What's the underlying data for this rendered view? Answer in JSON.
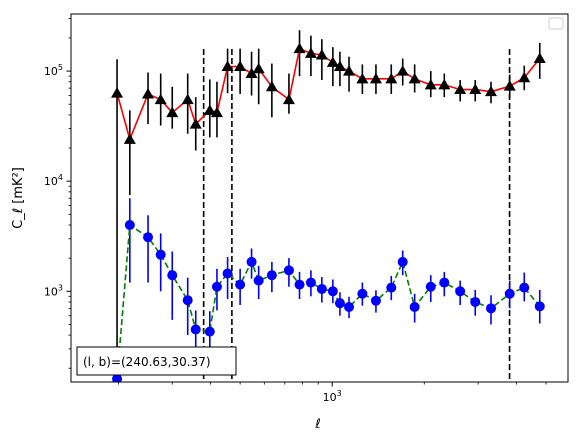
{
  "chart_data": {
    "type": "scatter",
    "title": "",
    "xlabel": "ℓ",
    "ylabel": "C_ℓ [mK²]",
    "xscale": "log",
    "yscale": "log",
    "xlim": [
      140,
      5900
    ],
    "ylim": [
      150,
      330000
    ],
    "x_tick_labels": [
      {
        "value": 1000,
        "base": "10",
        "exp": "3"
      }
    ],
    "y_tick_labels": [
      {
        "value": 1000,
        "base": "10",
        "exp": "3"
      },
      {
        "value": 10000,
        "base": "10",
        "exp": "4"
      },
      {
        "value": 100000,
        "base": "10",
        "exp": "5"
      }
    ],
    "annotation": "(l, b)=(240.63,30.37)",
    "vertical_lines_x": [
      380,
      470,
      3800
    ],
    "legend_location": "upper right (empty)",
    "series": [
      {
        "line_color": "#ff0000",
        "line_style": "solid",
        "marker": "triangle",
        "marker_color": "#000000",
        "errorbar_color": "#000000",
        "x": [
          198,
          218,
          250,
          275,
          300,
          337,
          358,
          398,
          420,
          455,
          500,
          545,
          575,
          635,
          722,
          782,
          852,
          925,
          1005,
          1060,
          1135,
          1255,
          1390,
          1560,
          1700,
          1860,
          2100,
          2325,
          2620,
          2935,
          3305,
          3805,
          4245,
          4770
        ],
        "y": [
          63000,
          24000,
          62000,
          55000,
          42000,
          55000,
          33000,
          44000,
          42000,
          110000,
          110000,
          95000,
          105000,
          72000,
          55000,
          160000,
          145000,
          140000,
          120000,
          110000,
          100000,
          85000,
          85000,
          85000,
          100000,
          85000,
          75000,
          75000,
          68000,
          68000,
          65000,
          73000,
          87000,
          130000
        ],
        "yerr_low": [
          62900,
          16500,
          29000,
          23000,
          12000,
          28000,
          14000,
          19000,
          17000,
          47000,
          48000,
          35000,
          55000,
          34000,
          14000,
          70000,
          55000,
          57000,
          47000,
          37000,
          35000,
          23000,
          23000,
          23000,
          26000,
          21000,
          17000,
          17000,
          15000,
          15000,
          14000,
          16000,
          20000,
          45000
        ],
        "yerr_high": [
          65000,
          20000,
          35000,
          40000,
          30000,
          40000,
          25000,
          40000,
          38000,
          50000,
          50000,
          55000,
          55000,
          45000,
          40000,
          75000,
          65000,
          55000,
          45000,
          40000,
          35000,
          30000,
          30000,
          30000,
          30000,
          30000,
          25000,
          20000,
          15000,
          15000,
          15000,
          20000,
          25000,
          50000
        ]
      },
      {
        "line_color": "#008000",
        "line_style": "dashed",
        "marker": "circle",
        "marker_color": "#0000ff",
        "errorbar_color": "#0000ff",
        "x": [
          198,
          218,
          250,
          275,
          300,
          337,
          358,
          398,
          420,
          455,
          500,
          545,
          575,
          635,
          722,
          782,
          852,
          925,
          1005,
          1060,
          1135,
          1255,
          1390,
          1560,
          1700,
          1860,
          2100,
          2325,
          2620,
          2935,
          3305,
          3805,
          4245,
          4770
        ],
        "y": [
          160,
          4000,
          3100,
          2150,
          1400,
          830,
          450,
          430,
          1100,
          1450,
          1150,
          1850,
          1250,
          1400,
          1550,
          1150,
          1200,
          1050,
          1000,
          780,
          720,
          950,
          820,
          1080,
          1850,
          720,
          1100,
          1200,
          1000,
          800,
          700,
          950,
          1080,
          730
        ],
        "yerr_low": [
          0,
          2800,
          1900,
          1150,
          850,
          430,
          200,
          200,
          430,
          600,
          400,
          550,
          400,
          420,
          450,
          300,
          300,
          260,
          220,
          180,
          150,
          210,
          180,
          250,
          450,
          200,
          300,
          300,
          250,
          200,
          200,
          250,
          270,
          220
        ],
        "yerr_high": [
          0,
          3000,
          1800,
          1200,
          900,
          500,
          220,
          230,
          500,
          600,
          450,
          600,
          450,
          450,
          450,
          350,
          350,
          300,
          280,
          200,
          170,
          250,
          200,
          300,
          500,
          230,
          300,
          300,
          250,
          230,
          220,
          300,
          400,
          300
        ]
      }
    ]
  }
}
